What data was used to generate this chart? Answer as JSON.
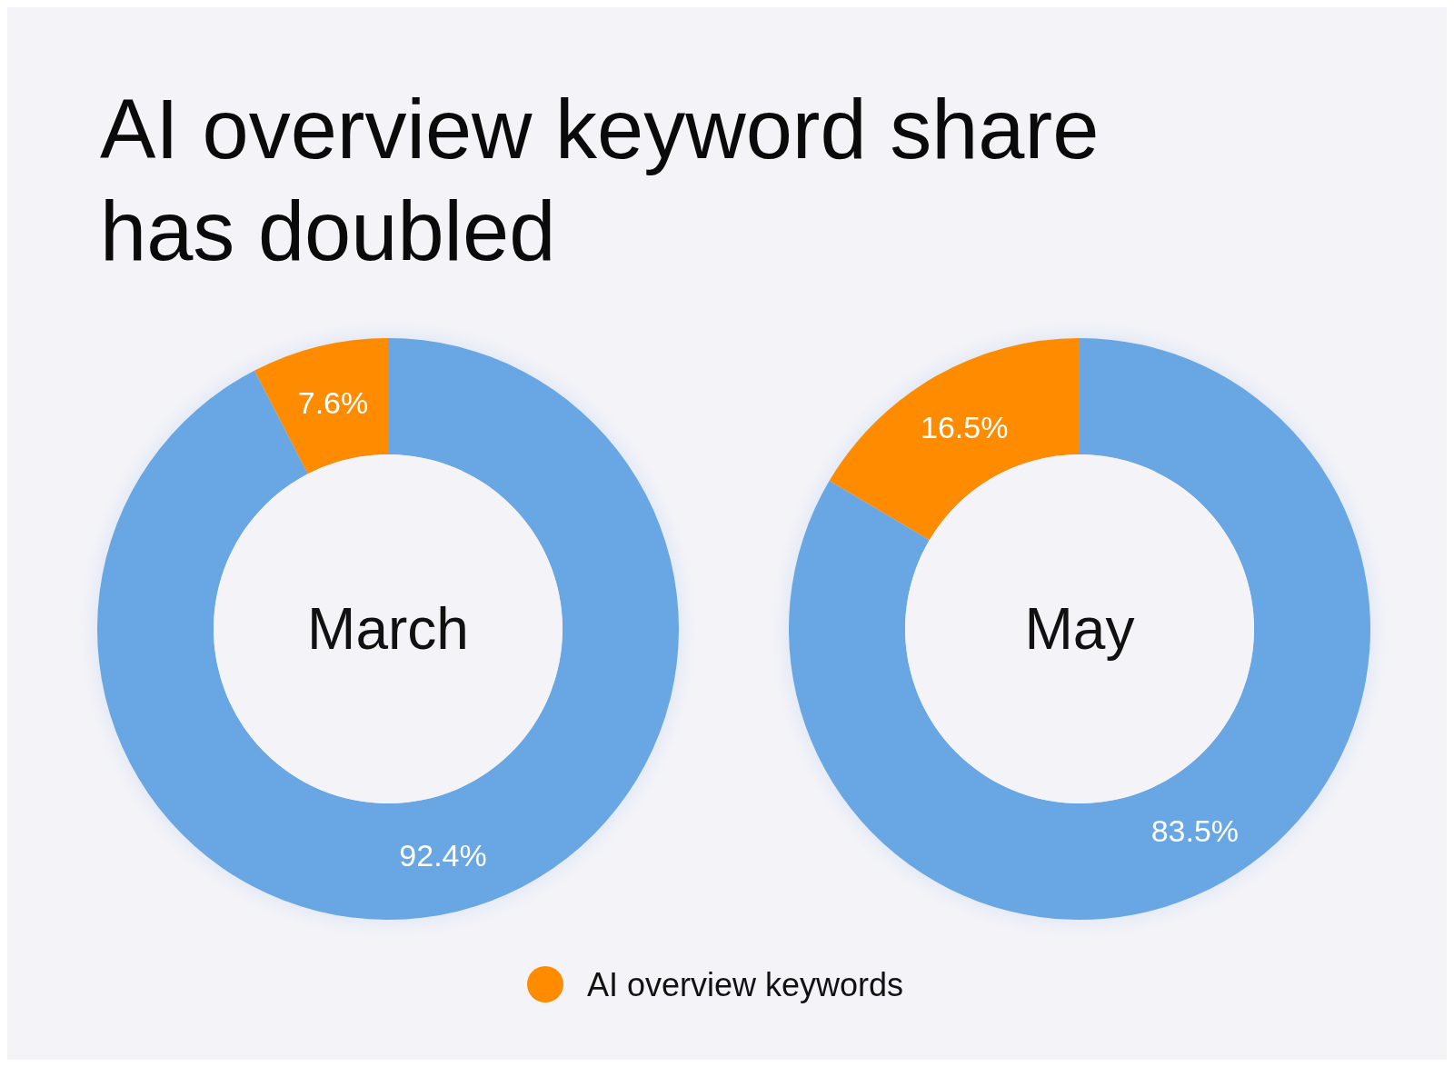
{
  "chart_data": [
    {
      "type": "donut",
      "title": "AI overview keyword share has doubled",
      "annotations": [
        "March"
      ],
      "categories": [
        "AI overview keywords",
        null
      ],
      "values": [
        7.6,
        92.4
      ],
      "colors": [
        "#ff8c00",
        "#68a7e3"
      ],
      "value_labels": [
        "7.6%",
        "92.4%"
      ],
      "legend": "bottom"
    },
    {
      "type": "donut",
      "annotations": [
        "May"
      ],
      "categories": [
        null,
        null
      ],
      "values": [
        16.5,
        83.5
      ],
      "colors": [
        "#ff8c00",
        "#68a7e3"
      ],
      "value_labels": [
        "16.5%",
        "83.5%"
      ]
    }
  ]
}
